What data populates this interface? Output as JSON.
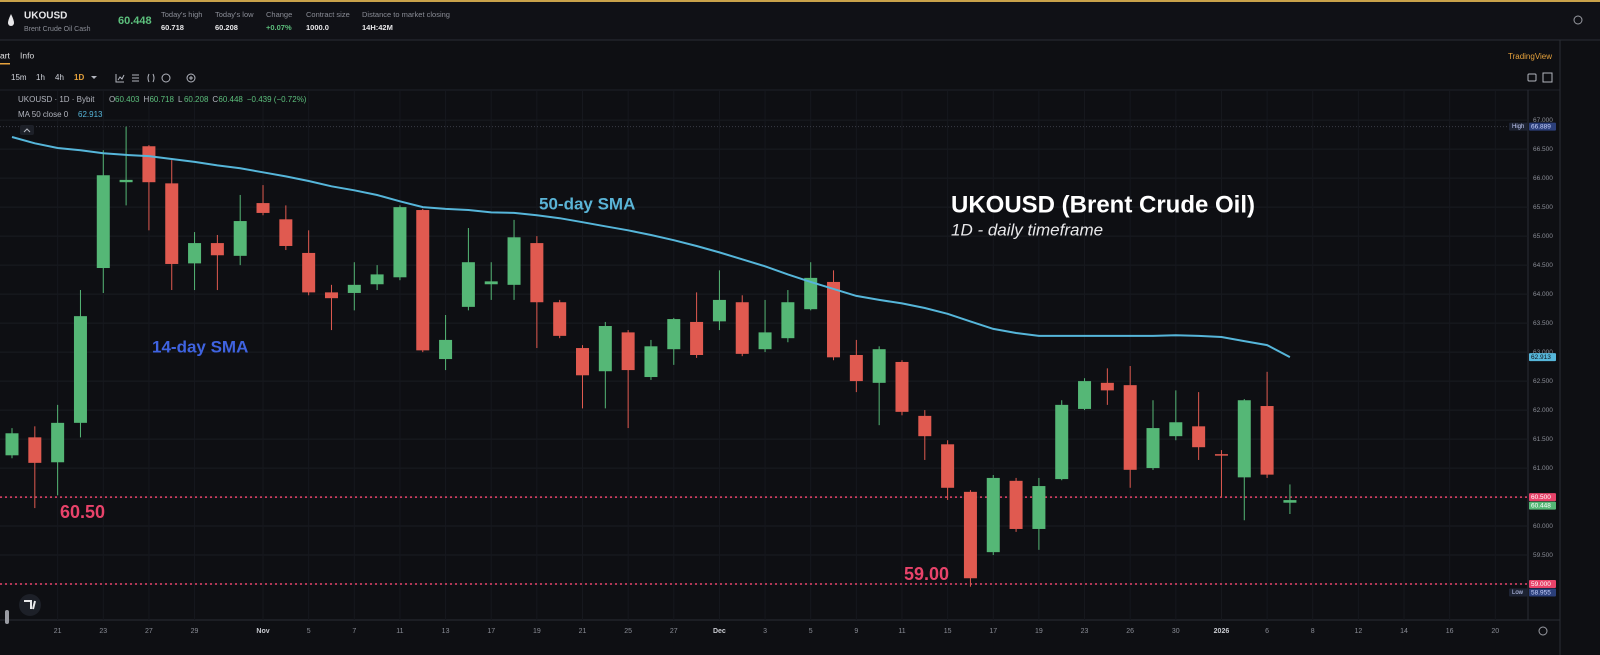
{
  "header": {
    "symbol": "UKOUSD",
    "name": "Brent Crude Oil Cash",
    "price": "60.448",
    "stats": [
      {
        "label": "Today's high",
        "value": "60.718"
      },
      {
        "label": "Today's low",
        "value": "60.208"
      },
      {
        "label": "Change",
        "value": "+0.07%"
      },
      {
        "label": "Contract size",
        "value": "1000.0"
      },
      {
        "label": "Distance to market closing",
        "value": "14H:42M"
      }
    ]
  },
  "tabs": [
    "art",
    "Info"
  ],
  "intervals": [
    "15m",
    "1h",
    "4h",
    "1D"
  ],
  "brand": "TradingView",
  "chart_data": {
    "type": "candlestick",
    "legend_title": "UKOUSD · 1D · Bybit",
    "legend_ohlc": [
      {
        "key": "O",
        "value": "60.403"
      },
      {
        "key": "H",
        "value": "60.718"
      },
      {
        "key": "L",
        "value": "60.208"
      },
      {
        "key": "C",
        "value": "60.448"
      },
      {
        "key": "",
        "value": "−0.439 (−0.72%)"
      }
    ],
    "annotations": {
      "title": "UKOUSD (Brent Crude Oil)",
      "subtitle": "1D - daily timeframe",
      "sma50": "50-day SMA",
      "sma14": "14-day SMA"
    },
    "categories": [
      null,
      null,
      "21",
      null,
      "23",
      null,
      "27",
      null,
      "29",
      null,
      null,
      "Nov",
      null,
      "5",
      null,
      "7",
      null,
      "11",
      null,
      "13",
      null,
      "17",
      null,
      "19",
      null,
      "21",
      null,
      "25",
      null,
      "27",
      null,
      "Dec",
      null,
      "3",
      null,
      "5",
      null,
      "9",
      null,
      "11",
      null,
      "15",
      null,
      "17",
      null,
      "19",
      null,
      "23",
      null,
      "26",
      null,
      "30",
      null,
      "2026",
      null,
      "6",
      null,
      "8",
      null,
      "12",
      null,
      "14",
      null,
      "16",
      null,
      "20"
    ],
    "open": [
      61.22,
      61.53,
      61.1,
      61.78,
      64.45,
      65.93,
      66.55,
      65.91,
      64.53,
      64.88,
      64.66,
      65.57,
      65.29,
      64.71,
      64.03,
      64.02,
      64.17,
      64.29,
      65.45,
      62.88,
      63.78,
      64.17,
      64.16,
      64.88,
      63.86,
      63.07,
      62.67,
      63.34,
      62.57,
      63.05,
      63.52,
      63.53,
      63.86,
      63.05,
      63.24,
      63.74,
      64.21,
      62.95,
      62.47,
      62.83,
      61.9,
      61.41,
      60.59,
      59.55,
      60.78,
      59.95,
      60.81,
      62.02,
      62.47,
      62.43,
      61.0,
      61.55,
      61.72,
      61.24,
      60.84,
      62.07,
      60.403,
      null,
      null,
      null,
      null,
      null,
      null,
      null,
      null,
      null
    ],
    "high": [
      61.69,
      61.72,
      62.09,
      64.07,
      66.48,
      66.889,
      66.57,
      66.31,
      65.07,
      65.02,
      65.71,
      65.88,
      65.53,
      65.1,
      64.16,
      64.55,
      64.5,
      65.53,
      65.47,
      63.64,
      65.14,
      64.55,
      65.28,
      65.0,
      63.9,
      63.12,
      63.52,
      63.38,
      63.21,
      63.59,
      64.03,
      64.41,
      63.98,
      63.9,
      64.07,
      64.55,
      64.41,
      63.21,
      63.1,
      62.86,
      62.0,
      61.48,
      60.62,
      60.88,
      60.83,
      60.83,
      62.17,
      62.55,
      62.72,
      62.76,
      62.17,
      62.34,
      62.31,
      61.31,
      62.19,
      62.66,
      60.718,
      null,
      null,
      null,
      null,
      null,
      null,
      null,
      null,
      null
    ],
    "low": [
      61.17,
      60.31,
      60.53,
      61.53,
      64.02,
      65.53,
      65.1,
      64.07,
      64.07,
      64.07,
      64.5,
      65.36,
      64.76,
      63.98,
      63.38,
      63.72,
      64.07,
      64.24,
      63.0,
      62.69,
      63.72,
      63.9,
      63.9,
      63.07,
      63.24,
      62.03,
      62.03,
      61.69,
      62.52,
      62.78,
      62.9,
      63.38,
      62.93,
      63.0,
      63.17,
      63.72,
      62.86,
      62.31,
      61.74,
      61.91,
      61.14,
      60.45,
      58.955,
      59.5,
      59.9,
      59.59,
      60.79,
      62.0,
      62.09,
      60.66,
      60.97,
      61.48,
      61.14,
      60.5,
      60.1,
      60.83,
      60.208,
      null,
      null,
      null,
      null,
      null,
      null,
      null,
      null,
      null
    ],
    "close": [
      61.6,
      61.09,
      61.78,
      63.62,
      66.05,
      65.97,
      65.93,
      64.52,
      64.88,
      64.67,
      65.26,
      65.4,
      64.83,
      64.03,
      63.93,
      64.16,
      64.34,
      65.5,
      63.03,
      63.21,
      64.55,
      64.22,
      64.98,
      63.86,
      63.28,
      62.6,
      63.45,
      62.69,
      63.1,
      63.57,
      62.95,
      63.9,
      62.97,
      63.34,
      63.86,
      64.28,
      62.91,
      62.5,
      63.05,
      61.97,
      61.55,
      60.66,
      59.1,
      60.83,
      59.95,
      60.69,
      62.09,
      62.5,
      62.34,
      60.97,
      61.69,
      61.79,
      61.36,
      61.22,
      62.17,
      60.887,
      60.448,
      null,
      null,
      null,
      null,
      null,
      null,
      null,
      null,
      null
    ],
    "up_color": "#55b776",
    "down_color": "#e05a50",
    "series": [
      {
        "name": "MA 50 close 0",
        "color": "#56b6da",
        "values": [
          66.71,
          66.6,
          66.52,
          66.48,
          66.43,
          66.4,
          66.38,
          66.33,
          66.28,
          66.22,
          66.17,
          66.1,
          66.03,
          65.95,
          65.86,
          65.79,
          65.71,
          65.6,
          65.5,
          65.47,
          65.45,
          65.41,
          65.4,
          65.36,
          65.31,
          65.24,
          65.17,
          65.1,
          65.02,
          64.93,
          64.83,
          64.72,
          64.6,
          64.48,
          64.34,
          64.21,
          64.09,
          63.97,
          63.9,
          63.84,
          63.76,
          63.66,
          63.53,
          63.4,
          63.33,
          63.28,
          63.28,
          63.28,
          63.28,
          63.28,
          63.28,
          63.29,
          63.28,
          63.26,
          63.19,
          63.12,
          62.913,
          null,
          null,
          null,
          null,
          null,
          null,
          null,
          null,
          null
        ]
      }
    ],
    "ylim": [
      58.38,
      67.52
    ],
    "yticks": [
      {
        "value": 59,
        "label": "59.000"
      },
      {
        "value": 59.5,
        "label": "59.500"
      },
      {
        "value": 60,
        "label": "60.000"
      },
      {
        "value": 60.5,
        "label": "60.500"
      },
      {
        "value": 61,
        "label": "61.000"
      },
      {
        "value": 61.5,
        "label": "61.500"
      },
      {
        "value": 62,
        "label": "62.000"
      },
      {
        "value": 62.5,
        "label": "62.500"
      },
      {
        "value": 63,
        "label": "63.000"
      },
      {
        "value": 63.5,
        "label": "63.500"
      },
      {
        "value": 64,
        "label": "64.000"
      },
      {
        "value": 64.5,
        "label": "64.500"
      },
      {
        "value": 65,
        "label": "65.000"
      },
      {
        "value": 65.5,
        "label": "65.500"
      },
      {
        "value": 66,
        "label": "66.000"
      },
      {
        "value": 66.5,
        "label": "66.500"
      },
      {
        "value": 67,
        "label": "67.000"
      }
    ],
    "grid": true,
    "hlines": [
      {
        "value": 60.5,
        "label": "60.50",
        "tag": "60.500",
        "color": "#e8436a"
      },
      {
        "value": 59,
        "label": "59.00",
        "tag": "59.000",
        "color": "#e8436a"
      }
    ],
    "extremes": [
      {
        "name": "High",
        "value": 66.889,
        "color": "#2b3f7a"
      },
      {
        "name": "Low",
        "value": 58.955,
        "color": "#2b3f7a"
      }
    ]
  }
}
